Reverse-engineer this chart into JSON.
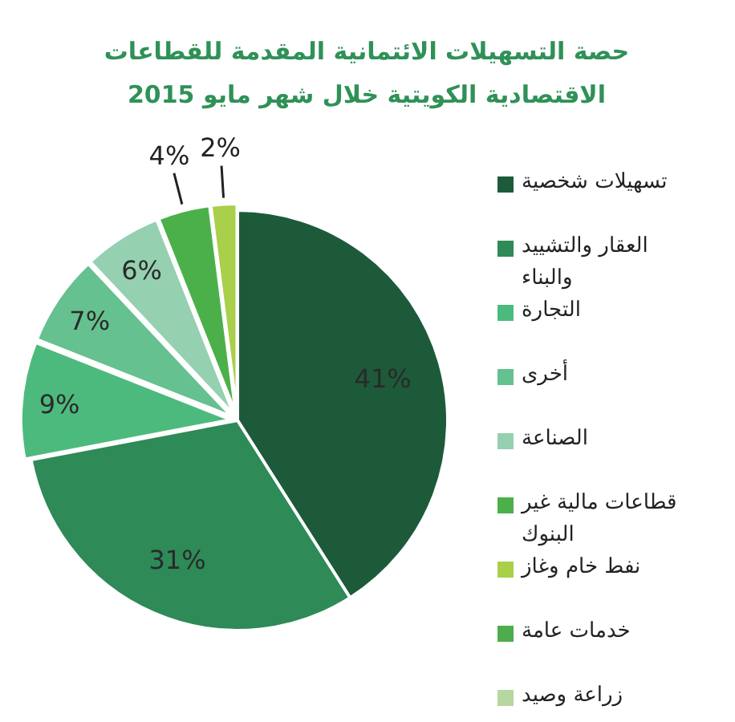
{
  "chart_data": {
    "type": "pie",
    "title": "حصة التسهيلات الائتمانية المقدمة للقطاعات الاقتصادية الكويتية خلال شهر مايو 2015",
    "categories": [
      "تسهيلات شخصية",
      "العقار والتشييد والبناء",
      "التجارة",
      "أخرى",
      "الصناعة",
      "قطاعات مالية غير البنوك",
      "نفط خام وغاز",
      "خدمات عامة",
      "زراعة وصيد"
    ],
    "values": [
      41,
      31,
      9,
      7,
      6,
      4,
      2,
      0,
      0
    ],
    "value_labels": [
      "41%",
      "31%",
      "9%",
      "7%",
      "6%",
      "4%",
      "2%",
      null,
      null
    ],
    "colors": [
      "#1d5a3a",
      "#2e8a57",
      "#4dba7d",
      "#65c18f",
      "#95d0b1",
      "#4cb04a",
      "#a9cf4b",
      "#4dad4c",
      "#b6d79f"
    ],
    "legend": "right"
  }
}
